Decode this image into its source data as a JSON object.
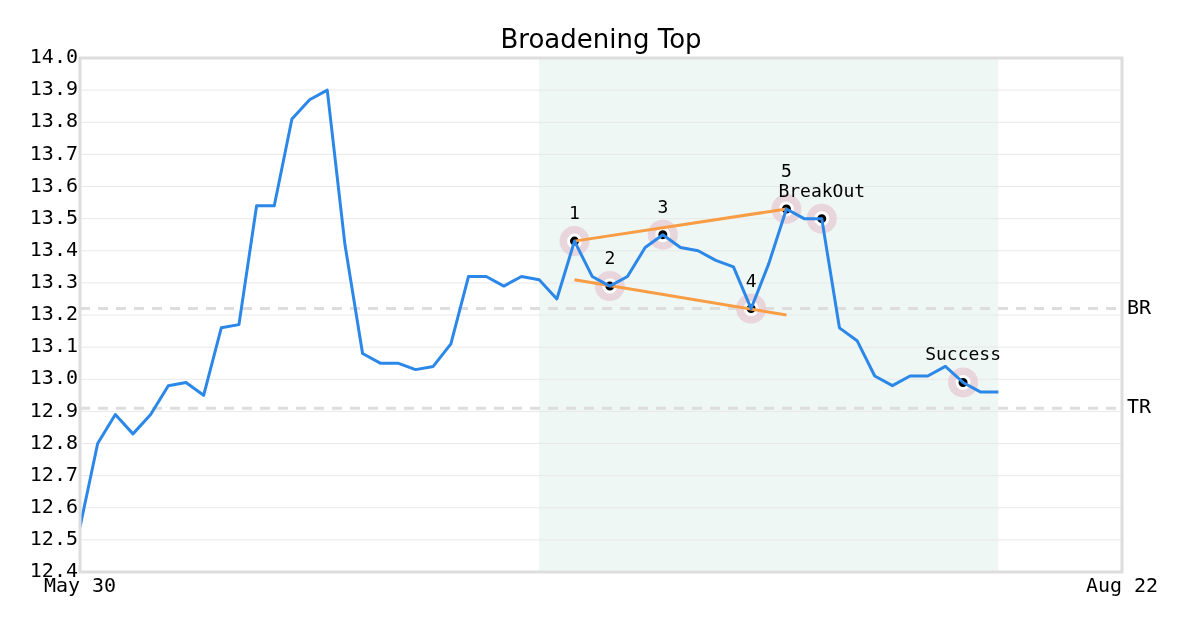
{
  "chart_data": {
    "type": "line",
    "title": "Broadening Top",
    "categories": [
      "May 30",
      null,
      null,
      null,
      null,
      null,
      null,
      null,
      null,
      null,
      null,
      null,
      null,
      null,
      null,
      null,
      null,
      null,
      null,
      null,
      null,
      null,
      null,
      null,
      null,
      null,
      null,
      null,
      null,
      null,
      null,
      null,
      null,
      null,
      null,
      null,
      null,
      null,
      null,
      null,
      null,
      null,
      null,
      null,
      null,
      null,
      null,
      null,
      null,
      null,
      null,
      null,
      null,
      null,
      null,
      null,
      null,
      null,
      null,
      "Aug 22"
    ],
    "series": [
      {
        "color": "#2b87e8",
        "values": [
          12.54,
          12.8,
          12.89,
          12.83,
          12.89,
          12.98,
          12.99,
          12.95,
          13.16,
          13.17,
          13.54,
          13.54,
          13.81,
          13.87,
          13.9,
          13.42,
          13.08,
          13.05,
          13.05,
          13.03,
          13.04,
          13.11,
          13.32,
          13.32,
          13.29,
          13.32,
          13.31,
          13.25,
          13.43,
          13.32,
          13.29,
          13.32,
          13.41,
          13.45,
          13.41,
          13.4,
          13.37,
          13.35,
          13.22,
          13.36,
          13.53,
          13.5,
          13.5,
          13.16,
          13.12,
          13.01,
          12.98,
          13.01,
          13.01,
          13.04,
          12.99,
          12.96,
          12.96,
          null,
          null,
          null,
          null,
          null,
          null,
          null
        ]
      },
      {
        "type": "line",
        "color": "#f99d45",
        "values": [
          null,
          null,
          null,
          null,
          null,
          null,
          null,
          null,
          null,
          null,
          null,
          null,
          null,
          null,
          null,
          null,
          null,
          null,
          null,
          null,
          null,
          null,
          null,
          null,
          null,
          null,
          null,
          null,
          13.43,
          null,
          null,
          null,
          null,
          null,
          null,
          null,
          null,
          null,
          null,
          null,
          13.53,
          null,
          null,
          null,
          null,
          null,
          null,
          null,
          null,
          null,
          null,
          null,
          null,
          null,
          null,
          null,
          null,
          null,
          null,
          null
        ]
      },
      {
        "type": "line",
        "color": "#f99d45",
        "values": [
          null,
          null,
          null,
          null,
          null,
          null,
          null,
          null,
          null,
          null,
          null,
          null,
          null,
          null,
          null,
          null,
          null,
          null,
          null,
          null,
          null,
          null,
          null,
          null,
          null,
          null,
          null,
          null,
          13.31,
          null,
          null,
          null,
          null,
          null,
          null,
          null,
          null,
          null,
          null,
          null,
          13.2,
          null,
          null,
          null,
          null,
          null,
          null,
          null,
          null,
          null,
          null,
          null,
          null,
          null,
          null,
          null,
          null,
          null,
          null,
          null
        ]
      },
      {
        "type": "scatter",
        "color": "#000000",
        "marker": "circle",
        "values": [
          null,
          null,
          null,
          null,
          null,
          null,
          null,
          null,
          null,
          null,
          null,
          null,
          null,
          null,
          null,
          null,
          null,
          null,
          null,
          null,
          null,
          null,
          null,
          null,
          null,
          null,
          null,
          null,
          13.43,
          null,
          13.29,
          null,
          null,
          13.45,
          null,
          null,
          null,
          null,
          13.22,
          null,
          13.53,
          null,
          13.5,
          null,
          null,
          null,
          null,
          null,
          null,
          null,
          12.99,
          null,
          null,
          null,
          null,
          null,
          null,
          null,
          null,
          null
        ]
      }
    ],
    "ylim": [
      12.4,
      14.0
    ],
    "yticks": [
      {
        "value": 12.4,
        "label": "12.4"
      },
      {
        "value": 12.5,
        "label": "12.5"
      },
      {
        "value": 12.6,
        "label": "12.6"
      },
      {
        "value": 12.7,
        "label": "12.7"
      },
      {
        "value": 12.8,
        "label": "12.8"
      },
      {
        "value": 12.9,
        "label": "12.9"
      },
      {
        "value": 13.0,
        "label": "13.0"
      },
      {
        "value": 13.1,
        "label": "13.1"
      },
      {
        "value": 13.2,
        "label": "13.2"
      },
      {
        "value": 13.3,
        "label": "13.3"
      },
      {
        "value": 13.4,
        "label": "13.4"
      },
      {
        "value": 13.5,
        "label": "13.5"
      },
      {
        "value": 13.6,
        "label": "13.6"
      },
      {
        "value": 13.7,
        "label": "13.7"
      },
      {
        "value": 13.8,
        "label": "13.8"
      },
      {
        "value": 13.9,
        "label": "13.9"
      },
      {
        "value": 14.0,
        "label": "14.0"
      }
    ],
    "ref_lines": [
      {
        "axis": "y",
        "value": 13.22,
        "label": "BR",
        "color": "#dddddd",
        "line_style": "dashed"
      },
      {
        "axis": "y",
        "value": 12.91,
        "label": "TR",
        "color": "#dddddd",
        "line_style": "dashed"
      }
    ],
    "annotations": [
      {
        "text": "1",
        "y": 13.43
      },
      {
        "text": "2",
        "y": 13.29
      },
      {
        "text": "3",
        "y": 13.45
      },
      {
        "text": "4",
        "y": 13.22
      },
      {
        "text": "5",
        "y": 13.53
      },
      {
        "text": "BreakOut",
        "y": 13.5
      },
      {
        "text": "Success",
        "y": 12.99
      }
    ],
    "grid": "y",
    "legend": false,
    "line_style": "solid"
  }
}
